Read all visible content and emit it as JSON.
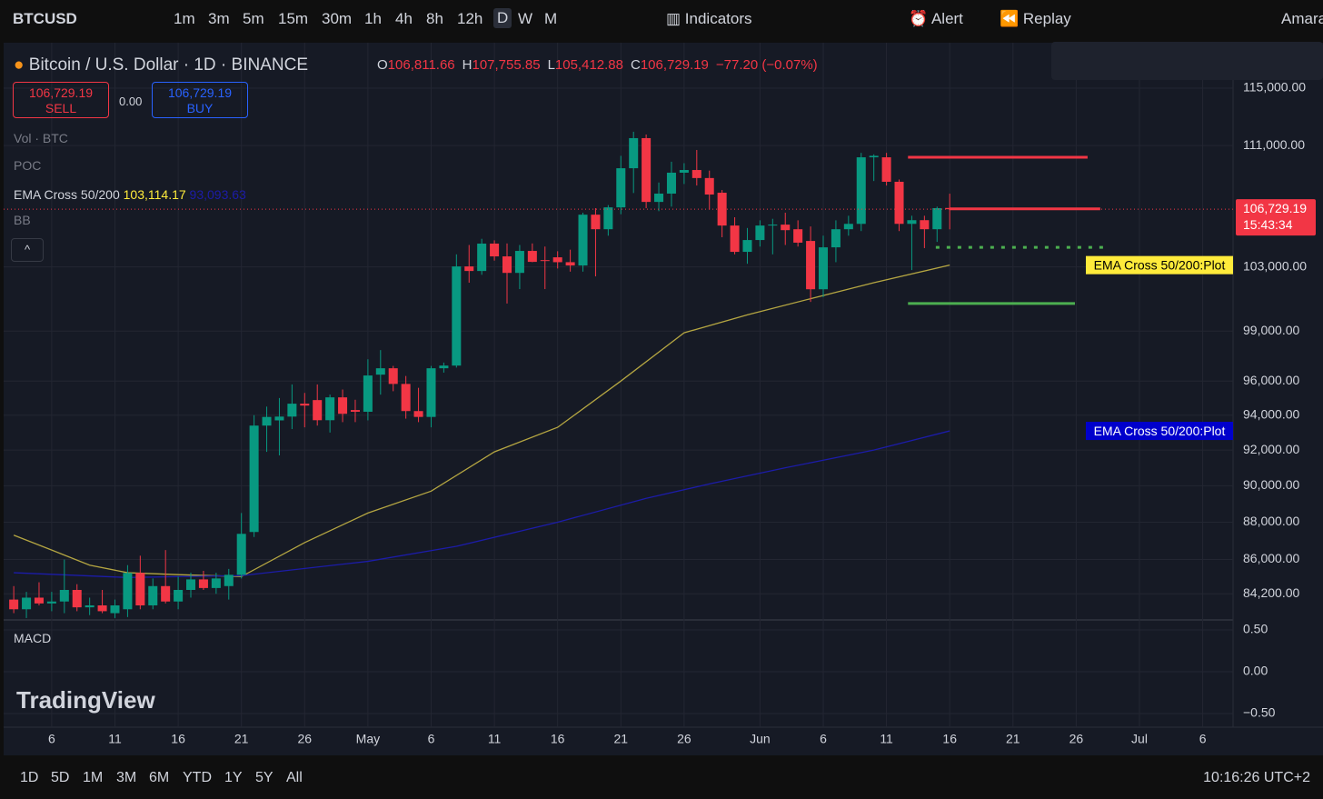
{
  "toolbar": {
    "symbol": "BTCUSD",
    "intervals": [
      "1m",
      "3m",
      "5m",
      "15m",
      "30m",
      "1h",
      "4h",
      "8h",
      "12h",
      "D",
      "W",
      "M"
    ],
    "indicators": "Indicators",
    "alert": "Alert",
    "replay": "Replay",
    "user": "Amara"
  },
  "legend": {
    "title": "Bitcoin / U.S. Dollar · 1D · BINANCE",
    "ohlc": [
      {
        "key": "O",
        "value": "106,811.66"
      },
      {
        "key": "H",
        "value": "107,755.85"
      },
      {
        "key": "L",
        "value": "105,412.88"
      },
      {
        "key": "C",
        "value": "106,729.19"
      }
    ],
    "change": "−77.20 (−0.07%)",
    "sell": {
      "price": "106,729.19",
      "label": "SELL"
    },
    "spread": "0.00",
    "buy": {
      "price": "106,729.19",
      "label": "BUY"
    },
    "indicators": [
      {
        "name": "Vol · BTC"
      },
      {
        "name": "POC"
      },
      {
        "name": "EMA Cross 50/200",
        "values": [
          "103,114.17",
          "93,093.63"
        ]
      },
      {
        "name": "BB"
      }
    ],
    "macd": "MACD"
  },
  "chart_data": {
    "type": "candlestick",
    "log_scale": true,
    "grid": true,
    "up_color": "#089981",
    "down_color": "#f23645",
    "ylim": [
      82900,
      118200
    ],
    "yticks": [
      {
        "value": 115000,
        "label": "115,000.00"
      },
      {
        "value": 111000,
        "label": "111,000.00"
      },
      {
        "value": 103000,
        "label": "103,000.00"
      },
      {
        "value": 99000,
        "label": "99,000.00"
      },
      {
        "value": 96000,
        "label": "96,000.00"
      },
      {
        "value": 94000,
        "label": "94,000.00"
      },
      {
        "value": 92000,
        "label": "92,000.00"
      },
      {
        "value": 90000,
        "label": "90,000.00"
      },
      {
        "value": 88000,
        "label": "88,000.00"
      },
      {
        "value": 86000,
        "label": "86,000.00"
      },
      {
        "value": 84200,
        "label": "84,200.00"
      }
    ],
    "xlim": [
      -0.8,
      96.4
    ],
    "xticks": [
      {
        "value": 3,
        "label": "6"
      },
      {
        "value": 8,
        "label": "11"
      },
      {
        "value": 13,
        "label": "16"
      },
      {
        "value": 18,
        "label": "21"
      },
      {
        "value": 23,
        "label": "26"
      },
      {
        "value": 28,
        "label": "May"
      },
      {
        "value": 33,
        "label": "6"
      },
      {
        "value": 38,
        "label": "11"
      },
      {
        "value": 43,
        "label": "16"
      },
      {
        "value": 48,
        "label": "21"
      },
      {
        "value": 53,
        "label": "26"
      },
      {
        "value": 59,
        "label": "Jun"
      },
      {
        "value": 64,
        "label": "6"
      },
      {
        "value": 69,
        "label": "11"
      },
      {
        "value": 74,
        "label": "16"
      },
      {
        "value": 79,
        "label": "21"
      },
      {
        "value": 84,
        "label": "26"
      },
      {
        "value": 89,
        "label": "Jul"
      },
      {
        "value": 94,
        "label": "6"
      }
    ],
    "candles": {
      "open": [
        83900,
        83400,
        84000,
        83700,
        83800,
        84400,
        83500,
        83600,
        83200,
        83400,
        85290,
        83600,
        84600,
        83800,
        84400,
        84950,
        84500,
        84600,
        85190,
        87470,
        93400,
        93700,
        93920,
        94670,
        94880,
        93710,
        95040,
        94300,
        94200,
        96380,
        96760,
        95830,
        94240,
        93900,
        96760,
        96920,
        103030,
        102740,
        104490,
        103670,
        102620,
        104020,
        103430,
        103610,
        103300,
        103090,
        106370,
        105420,
        106850,
        109460,
        111510,
        107210,
        107760,
        109160,
        109340,
        108800,
        107820,
        105660,
        103960,
        104720,
        105660,
        105720,
        105420,
        104660,
        101590,
        104250,
        105420,
        105770,
        110200,
        110200,
        108550,
        105770,
        106010,
        105420,
        106811.66
      ],
      "high": [
        84600,
        84300,
        84800,
        84300,
        86000,
        84700,
        84000,
        84400,
        83900,
        85700,
        86200,
        85000,
        86500,
        85100,
        85300,
        85400,
        85300,
        85500,
        88500,
        94000,
        94500,
        95000,
        95800,
        95300,
        95800,
        95200,
        95500,
        94900,
        97300,
        97850,
        96900,
        96300,
        95600,
        96900,
        97100,
        103800,
        104400,
        104800,
        104700,
        104500,
        104400,
        104500,
        104300,
        104000,
        104100,
        106500,
        106800,
        107000,
        110300,
        111950,
        111760,
        108500,
        109900,
        109800,
        110700,
        109300,
        108000,
        106200,
        105500,
        106000,
        106100,
        106500,
        106000,
        105600,
        105000,
        106000,
        106300,
        110500,
        110400,
        110500,
        108700,
        106300,
        106300,
        106900,
        107755.85
      ],
      "low": [
        83200,
        82950,
        83600,
        83300,
        83200,
        83300,
        83100,
        83200,
        82950,
        83000,
        83400,
        83400,
        83700,
        83400,
        84000,
        84400,
        84200,
        83900,
        85000,
        87200,
        91900,
        91700,
        93200,
        93300,
        93400,
        93000,
        93600,
        93600,
        93700,
        95200,
        95400,
        93800,
        93600,
        93300,
        96500,
        96800,
        102000,
        102500,
        103400,
        100700,
        101600,
        103300,
        101600,
        102900,
        102700,
        102700,
        102400,
        105000,
        106400,
        107800,
        106800,
        106600,
        106900,
        108400,
        108300,
        106700,
        104900,
        103800,
        103200,
        104300,
        103800,
        104400,
        104300,
        100800,
        101100,
        103300,
        105000,
        105300,
        108600,
        108300,
        105300,
        102800,
        104200,
        104600,
        105412.88
      ],
      "close": [
        83400,
        84000,
        83700,
        83800,
        84400,
        83500,
        83600,
        83300,
        83600,
        85290,
        83600,
        84600,
        83800,
        84400,
        84950,
        84500,
        85000,
        85190,
        87370,
        93400,
        93900,
        93920,
        94670,
        94560,
        93710,
        95040,
        94080,
        94200,
        96330,
        96760,
        95830,
        94240,
        93900,
        96760,
        96920,
        103030,
        102740,
        104490,
        103670,
        102620,
        104020,
        103320,
        103400,
        103300,
        103090,
        106370,
        105420,
        106850,
        109460,
        111510,
        107210,
        107760,
        109160,
        109340,
        108800,
        107700,
        105660,
        103960,
        104720,
        105660,
        105720,
        105360,
        104550,
        101590,
        104250,
        105420,
        105770,
        110200,
        110300,
        108550,
        105770,
        106010,
        105420,
        106800,
        106729.19
      ]
    },
    "series": [
      {
        "name": "EMA Cross 50/200:Plot",
        "color": "#b5a642",
        "label_color": "#ffeb3b",
        "label_text": "#000000",
        "x": [
          0,
          3,
          6,
          9,
          13,
          18,
          23,
          28,
          33,
          38,
          43,
          48,
          53,
          58,
          63,
          68,
          74
        ],
        "values": [
          87300,
          86500,
          85700,
          85300,
          85200,
          85100,
          86900,
          88500,
          89700,
          91900,
          93300,
          96000,
          98900,
          100000,
          101000,
          102000,
          103114.17
        ]
      },
      {
        "name": "EMA Cross 50/200:Plot",
        "color": "#1c1ca8",
        "label_color": "#0000cc",
        "label_text": "#ffffff",
        "x": [
          0,
          9,
          18,
          28,
          35,
          43,
          50,
          55,
          61,
          68,
          74
        ],
        "values": [
          85300,
          85050,
          85150,
          85900,
          86700,
          88000,
          89300,
          90100,
          91000,
          92000,
          93093.63
        ]
      }
    ],
    "last_price": {
      "value": 106729.19,
      "label": "106,729.19",
      "countdown": "15:43:34",
      "color": "#f23645"
    },
    "drawings": [
      {
        "value": 110200,
        "x": [
          70.7,
          84.9
        ],
        "color": "#f23645",
        "style": "solid"
      },
      {
        "value": 106750,
        "x": [
          74.0,
          85.9
        ],
        "color": "#f23645",
        "style": "solid"
      },
      {
        "value": 104250,
        "x": [
          72.9,
          86.2
        ],
        "color": "#4caf50",
        "style": "dotted"
      },
      {
        "value": 100700,
        "x": [
          70.7,
          83.9
        ],
        "color": "#4caf50",
        "style": "solid"
      }
    ],
    "macd": {
      "ylim": [
        -0.663,
        0.598
      ],
      "yticks": [
        {
          "value": 0.5,
          "label": "0.50"
        },
        {
          "value": 0,
          "label": "0.00"
        },
        {
          "value": -0.5,
          "label": "−0.50"
        }
      ]
    }
  },
  "bottom": {
    "ranges": [
      "1D",
      "5D",
      "1M",
      "3M",
      "6M",
      "YTD",
      "1Y",
      "5Y",
      "All"
    ],
    "time": "10:16:26 UTC+2"
  },
  "watermark": "TradingView"
}
